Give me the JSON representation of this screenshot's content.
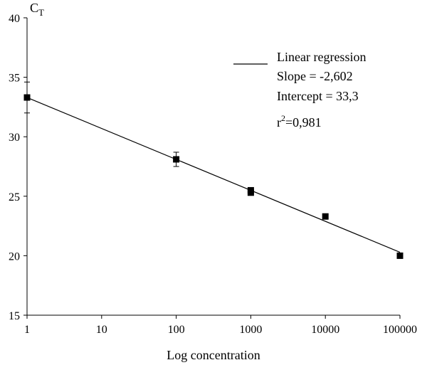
{
  "chart_data": {
    "type": "scatter",
    "x_scale": "log",
    "title": "",
    "ylabel_main": "C",
    "ylabel_sub": "T",
    "xlabel": "Log concentration",
    "xlim": [
      1,
      100000
    ],
    "ylim": [
      15,
      40
    ],
    "x_ticks": [
      1,
      10,
      100,
      1000,
      10000,
      100000
    ],
    "x_tick_labels": [
      "1",
      "10",
      "100",
      "1000",
      "10000",
      "100000"
    ],
    "y_ticks": [
      15,
      20,
      25,
      30,
      35,
      40
    ],
    "y_tick_labels": [
      "15",
      "20",
      "25",
      "30",
      "35",
      "40"
    ],
    "points": [
      {
        "x": 1,
        "y": 33.3,
        "err": 1.3
      },
      {
        "x": 100,
        "y": 28.1,
        "err": 0.6
      },
      {
        "x": 1000,
        "y": 25.5,
        "err": 0.1
      },
      {
        "x": 1000,
        "y": 25.3,
        "err": 0.1
      },
      {
        "x": 10000,
        "y": 23.3,
        "err": 0.1
      },
      {
        "x": 100000,
        "y": 20.0,
        "err": 0.1
      }
    ],
    "regression": {
      "slope": -2.602,
      "intercept": 33.3
    },
    "legend": {
      "position": "top-right",
      "title": "Linear regression",
      "slope_text": "Slope = -2,602",
      "intercept_text": "Intercept = 33,3",
      "r2_prefix": "r",
      "r2_sup": "2",
      "r2_value": "=0,981"
    },
    "colors": {
      "line": "#000000",
      "marker": "#000000"
    }
  }
}
